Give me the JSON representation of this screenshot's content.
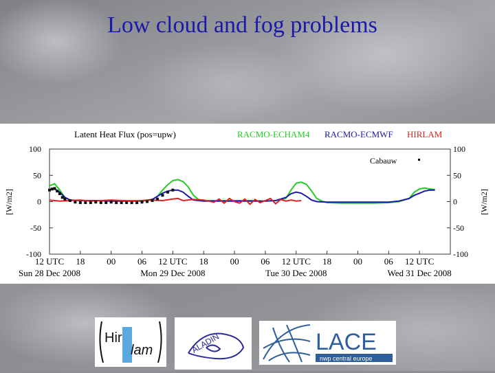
{
  "slide": {
    "title": "Low cloud and fog problems"
  },
  "chart_data": {
    "type": "line",
    "title": "Latent Heat Flux (pos=upw)",
    "ylabel_left": "[W/m2]",
    "ylabel_right": "[W/m2]",
    "ylim": [
      -100,
      100
    ],
    "y_ticks_left": [
      100,
      50,
      0,
      -50,
      -100
    ],
    "y_ticks_right": [
      100,
      50,
      0,
      -50,
      -100
    ],
    "xlim": [
      0,
      78
    ],
    "x_ticks": [
      {
        "x": 0,
        "label": "12 UTC"
      },
      {
        "x": 6,
        "label": "18"
      },
      {
        "x": 12,
        "label": "00"
      },
      {
        "x": 18,
        "label": "06"
      },
      {
        "x": 24,
        "label": "12 UTC"
      },
      {
        "x": 30,
        "label": "18"
      },
      {
        "x": 36,
        "label": "00"
      },
      {
        "x": 42,
        "label": "06"
      },
      {
        "x": 48,
        "label": "12 UTC"
      },
      {
        "x": 54,
        "label": "18"
      },
      {
        "x": 60,
        "label": "00"
      },
      {
        "x": 66,
        "label": "06"
      },
      {
        "x": 72,
        "label": "12 UTC"
      }
    ],
    "date_labels": [
      {
        "x": 0,
        "label": "Sun 28 Dec 2008"
      },
      {
        "x": 24,
        "label": "Mon 29 Dec 2008"
      },
      {
        "x": 48,
        "label": "Tue 30 Dec 2008"
      },
      {
        "x": 72,
        "label": "Wed 31 Dec 2008"
      }
    ],
    "observation_label": "Cabauw",
    "series": [
      {
        "name": "RACMO-ECHAM4",
        "color": "#22cc22",
        "points": [
          [
            0,
            30
          ],
          [
            1,
            34
          ],
          [
            2,
            22
          ],
          [
            3,
            8
          ],
          [
            4,
            3
          ],
          [
            6,
            2
          ],
          [
            9,
            2
          ],
          [
            12,
            2
          ],
          [
            15,
            2
          ],
          [
            18,
            2
          ],
          [
            20,
            4
          ],
          [
            21,
            10
          ],
          [
            22,
            22
          ],
          [
            23,
            32
          ],
          [
            24,
            40
          ],
          [
            25,
            42
          ],
          [
            26,
            38
          ],
          [
            27,
            28
          ],
          [
            28,
            12
          ],
          [
            29,
            4
          ],
          [
            30,
            2
          ],
          [
            33,
            2
          ],
          [
            36,
            2
          ],
          [
            39,
            2
          ],
          [
            42,
            1
          ],
          [
            44,
            2
          ],
          [
            46,
            6
          ],
          [
            47,
            22
          ],
          [
            48,
            35
          ],
          [
            49,
            37
          ],
          [
            50,
            33
          ],
          [
            51,
            20
          ],
          [
            52,
            6
          ],
          [
            53,
            1
          ],
          [
            54,
            -2
          ],
          [
            57,
            -3
          ],
          [
            60,
            -3
          ],
          [
            63,
            -3
          ],
          [
            66,
            -2
          ],
          [
            68,
            0
          ],
          [
            70,
            6
          ],
          [
            71,
            18
          ],
          [
            72,
            24
          ],
          [
            73,
            26
          ],
          [
            74,
            24
          ],
          [
            75,
            23
          ]
        ]
      },
      {
        "name": "RACMO-ECMWF",
        "color": "#1a1aaa",
        "points": [
          [
            0,
            22
          ],
          [
            1,
            24
          ],
          [
            2,
            18
          ],
          [
            3,
            8
          ],
          [
            4,
            3
          ],
          [
            6,
            2
          ],
          [
            9,
            2
          ],
          [
            12,
            1
          ],
          [
            15,
            1
          ],
          [
            18,
            1
          ],
          [
            20,
            4
          ],
          [
            21,
            10
          ],
          [
            22,
            16
          ],
          [
            23,
            20
          ],
          [
            24,
            22
          ],
          [
            25,
            22
          ],
          [
            26,
            18
          ],
          [
            27,
            10
          ],
          [
            28,
            3
          ],
          [
            30,
            1
          ],
          [
            33,
            1
          ],
          [
            36,
            1
          ],
          [
            39,
            1
          ],
          [
            42,
            1
          ],
          [
            44,
            2
          ],
          [
            46,
            8
          ],
          [
            47,
            15
          ],
          [
            48,
            18
          ],
          [
            49,
            16
          ],
          [
            50,
            10
          ],
          [
            51,
            3
          ],
          [
            52,
            0
          ],
          [
            54,
            -1
          ],
          [
            57,
            -1
          ],
          [
            60,
            -1
          ],
          [
            63,
            -1
          ],
          [
            66,
            -1
          ],
          [
            68,
            1
          ],
          [
            70,
            6
          ],
          [
            71,
            12
          ],
          [
            72,
            16
          ],
          [
            73,
            20
          ],
          [
            74,
            22
          ],
          [
            75,
            22
          ]
        ]
      },
      {
        "name": "HIRLAM",
        "color": "#dd2020",
        "points": [
          [
            0,
            3
          ],
          [
            2,
            1
          ],
          [
            4,
            2
          ],
          [
            6,
            3
          ],
          [
            8,
            1
          ],
          [
            10,
            2
          ],
          [
            12,
            3
          ],
          [
            14,
            2
          ],
          [
            16,
            1
          ],
          [
            18,
            2
          ],
          [
            20,
            3
          ],
          [
            22,
            2
          ],
          [
            24,
            5
          ],
          [
            25,
            6
          ],
          [
            26,
            2
          ],
          [
            28,
            4
          ],
          [
            30,
            3
          ],
          [
            32,
            -1
          ],
          [
            33,
            5
          ],
          [
            34,
            -3
          ],
          [
            35,
            6
          ],
          [
            36,
            0
          ],
          [
            37,
            -3
          ],
          [
            38,
            5
          ],
          [
            39,
            -5
          ],
          [
            40,
            4
          ],
          [
            41,
            -2
          ],
          [
            42,
            2
          ],
          [
            43,
            6
          ],
          [
            44,
            -4
          ],
          [
            45,
            4
          ],
          [
            46,
            1
          ],
          [
            47,
            3
          ],
          [
            48,
            1
          ],
          [
            49,
            2
          ]
        ]
      },
      {
        "name": "Cabauw",
        "color": "#101010",
        "marker": "square",
        "points": [
          [
            0,
            22
          ],
          [
            0.5,
            24
          ],
          [
            1,
            25
          ],
          [
            1.5,
            20
          ],
          [
            2,
            15
          ],
          [
            2.5,
            8
          ],
          [
            3,
            5
          ],
          [
            4,
            2
          ],
          [
            5,
            -1
          ],
          [
            6,
            -2
          ],
          [
            7,
            -2
          ],
          [
            8,
            -2
          ],
          [
            9,
            -1
          ],
          [
            10,
            -2
          ],
          [
            11,
            -2
          ],
          [
            12,
            -1
          ],
          [
            13,
            -2
          ],
          [
            14,
            -2
          ],
          [
            15,
            -2
          ],
          [
            16,
            -2
          ],
          [
            17,
            -2
          ],
          [
            18,
            -1
          ],
          [
            19,
            0
          ],
          [
            20,
            2
          ],
          [
            21,
            5
          ],
          [
            22,
            12
          ],
          [
            23,
            18
          ],
          [
            24,
            22
          ]
        ]
      }
    ],
    "grid": false,
    "legend_position": "top"
  }
}
